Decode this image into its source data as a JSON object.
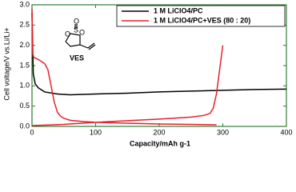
{
  "chart_data": {
    "type": "line",
    "xlabel": "Capacity/mAh g-1",
    "ylabel": "Cell voltage/V vs.Li/Li+",
    "annotation": "VES",
    "xlim": [
      0,
      400
    ],
    "xticks": [
      0,
      100,
      200,
      300,
      400
    ],
    "ylim": [
      0,
      3.0
    ],
    "yticks": [
      {
        "value": 0,
        "label": "0.0"
      },
      0.5,
      {
        "value": 1,
        "label": "1.0"
      },
      1.5,
      {
        "value": 2,
        "label": "2.0"
      },
      2.5,
      {
        "value": 3,
        "label": "3.0"
      }
    ],
    "legend": "upper right",
    "axis_color": "#2f7d32",
    "series": [
      {
        "name": "1 M LiClO4/PC",
        "color": "#000000",
        "x": [
          0,
          2,
          5,
          10,
          20,
          40,
          60,
          100,
          150,
          200,
          250,
          300,
          350,
          400
        ],
        "values": [
          2.8,
          1.3,
          1.05,
          0.95,
          0.85,
          0.8,
          0.78,
          0.8,
          0.82,
          0.85,
          0.87,
          0.89,
          0.91,
          0.92
        ]
      },
      {
        "name": "1 M LiClO4/PC+VES (80 : 20)",
        "color": "#e8202a",
        "x": [
          0,
          1,
          3,
          10,
          20,
          25,
          30,
          35,
          40,
          45,
          50,
          60,
          80,
          100,
          150,
          200,
          250,
          290,
          null,
          0,
          50,
          100,
          150,
          200,
          250,
          270,
          280,
          285,
          290,
          295,
          300
        ],
        "values": [
          2.9,
          1.8,
          1.7,
          1.65,
          1.55,
          1.4,
          1.0,
          0.6,
          0.35,
          0.25,
          0.2,
          0.15,
          0.12,
          0.1,
          0.08,
          0.06,
          0.05,
          0.04,
          null,
          0.02,
          0.05,
          0.1,
          0.14,
          0.18,
          0.23,
          0.27,
          0.32,
          0.45,
          0.8,
          1.4,
          2.0
        ]
      }
    ]
  }
}
